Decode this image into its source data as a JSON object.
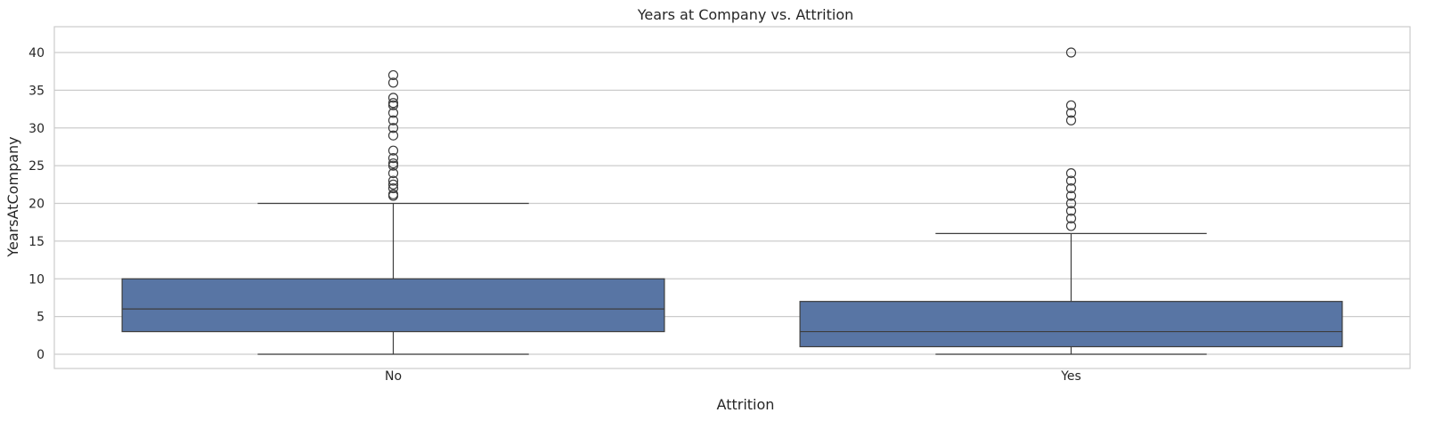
{
  "chart_data": {
    "type": "box",
    "title": "Years at Company vs. Attrition",
    "xlabel": "Attrition",
    "ylabel": "YearsAtCompany",
    "ylim": [
      -1.9,
      42
    ],
    "yticks": [
      0,
      5,
      10,
      15,
      20,
      25,
      30,
      35,
      40
    ],
    "grid": true,
    "box_color": "#5875a4",
    "line_color": "#3d3d3d",
    "grid_color": "#cccccc",
    "categories": [
      "No",
      "Yes"
    ],
    "boxes": [
      {
        "category": "No",
        "whisker_low": 0,
        "q1": 3,
        "median": 6,
        "q3": 10,
        "whisker_high": 20,
        "outliers": [
          21,
          21.2,
          22,
          22.5,
          23,
          24,
          25,
          25.3,
          26,
          27,
          29,
          30,
          31,
          32,
          33,
          33.3,
          34,
          36,
          37
        ]
      },
      {
        "category": "Yes",
        "whisker_low": 0,
        "q1": 1,
        "median": 3,
        "q3": 7,
        "whisker_high": 16,
        "outliers": [
          17,
          18,
          19,
          20,
          21,
          22,
          23,
          24,
          31,
          32,
          33,
          40
        ]
      }
    ]
  }
}
